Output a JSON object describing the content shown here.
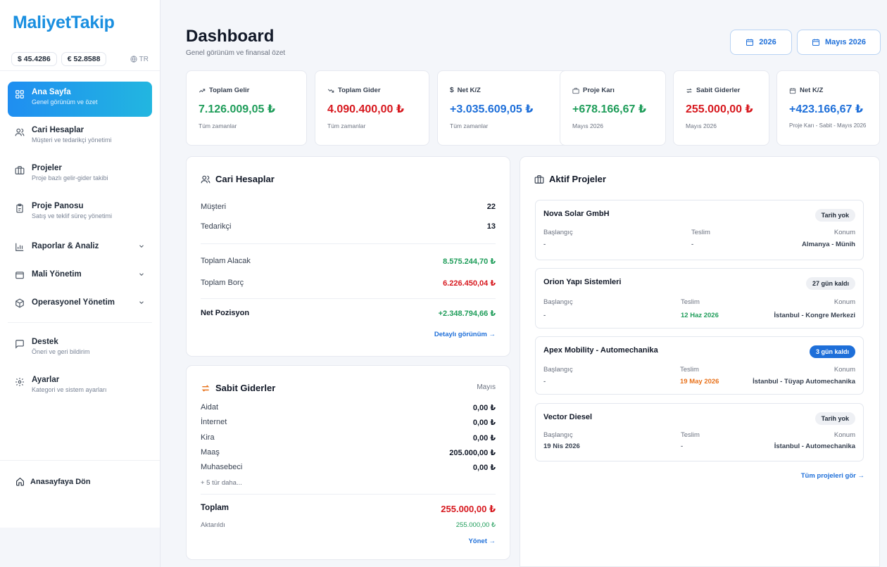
{
  "brand": {
    "logo": "MaliyetTakip"
  },
  "currencies": {
    "usd": "$ 45.4286",
    "eur": "€ 52.8588",
    "lang": "TR"
  },
  "sidebar": {
    "items": [
      {
        "title": "Ana Sayfa",
        "sub": "Genel görünüm ve özet"
      },
      {
        "title": "Cari Hesaplar",
        "sub": "Müşteri ve tedarikçi yönetimi"
      },
      {
        "title": "Projeler",
        "sub": "Proje bazlı gelir-gider takibi"
      },
      {
        "title": "Proje Panosu",
        "sub": "Satış ve teklif süreç yönetimi"
      },
      {
        "title": "Raporlar & Analiz"
      },
      {
        "title": "Mali Yönetim"
      },
      {
        "title": "Operasyonel Yönetim"
      },
      {
        "title": "Destek",
        "sub": "Öneri ve geri bildirim"
      },
      {
        "title": "Ayarlar",
        "sub": "Kategori ve sistem ayarları"
      }
    ],
    "home_link": "Anasayfaya Dön"
  },
  "header": {
    "title": "Dashboard",
    "subtitle": "Genel görünüm ve finansal özet",
    "year_btn": "2026",
    "month_btn": "Mayıs 2026"
  },
  "stats": [
    {
      "label": "Toplam Gelir",
      "value": "7.126.009,05 ₺",
      "note": "Tüm zamanlar",
      "color": "#1f9d5a"
    },
    {
      "label": "Toplam Gider",
      "value": "4.090.400,00 ₺",
      "note": "Tüm zamanlar",
      "color": "#d7191f"
    },
    {
      "label": "Net K/Z",
      "value": "+3.035.609,05 ₺",
      "note": "Tüm zamanlar",
      "color": "#1e6fd9"
    },
    {
      "label": "Proje Karı",
      "value": "+678.166,67 ₺",
      "note": "Mayıs 2026",
      "color": "#1f9d5a"
    },
    {
      "label": "Sabit Giderler",
      "value": "255.000,00 ₺",
      "note": "Mayıs 2026",
      "color": "#d7191f"
    },
    {
      "label": "Net K/Z",
      "value": "+423.166,67 ₺",
      "note": "Proje Karı - Sabit - Mayıs 2026",
      "color": "#1e6fd9"
    }
  ],
  "cari": {
    "title": "Cari Hesaplar",
    "musteri_label": "Müşteri",
    "musteri_value": "22",
    "tedarikci_label": "Tedarikçi",
    "tedarikci_value": "13",
    "alacak_label": "Toplam Alacak",
    "alacak_value": "8.575.244,70 ₺",
    "borc_label": "Toplam Borç",
    "borc_value": "6.226.450,04 ₺",
    "net_label": "Net Pozisyon",
    "net_value": "+2.348.794,66 ₺",
    "detail_link": "Detaylı görünüm →"
  },
  "sabit": {
    "title": "Sabit Giderler",
    "month": "Mayıs",
    "rows": [
      {
        "label": "Aidat",
        "value": "0,00 ₺"
      },
      {
        "label": "İnternet",
        "value": "0,00 ₺"
      },
      {
        "label": "Kira",
        "value": "0,00 ₺"
      },
      {
        "label": "Maaş",
        "value": "205.000,00 ₺"
      },
      {
        "label": "Muhasebeci",
        "value": "0,00 ₺"
      }
    ],
    "more": "+ 5 tür daha...",
    "total_label": "Toplam",
    "total_value": "255.000,00 ₺",
    "aktarildi_label": "Aktarıldı",
    "aktarildi_value": "255.000,00 ₺",
    "manage_link": "Yönet →"
  },
  "projects": {
    "title": "Aktif Projeler",
    "labels": {
      "start": "Başlangıç",
      "due": "Teslim",
      "location": "Konum"
    },
    "items": [
      {
        "name": "Nova Solar GmbH",
        "badge": "Tarih yok",
        "start": "-",
        "due": "-",
        "location": "Almanya - Münih"
      },
      {
        "name": "Orion Yapı Sistemleri",
        "badge": "27 gün kaldı",
        "start": "-",
        "due": "12 Haz 2026",
        "location": "İstanbul - Kongre Merkezi"
      },
      {
        "name": "Apex Mobility - Automechanika",
        "badge": "3 gün kaldı",
        "start": "-",
        "due": "19 May 2026",
        "location": "İstanbul - Tüyap Automechanika"
      },
      {
        "name": "Vector Diesel",
        "badge": "Tarih yok",
        "start": "19 Nis 2026",
        "due": "-",
        "location": "İstanbul - Automechanika"
      }
    ],
    "all_link": "Tüm projeleri gör →"
  }
}
